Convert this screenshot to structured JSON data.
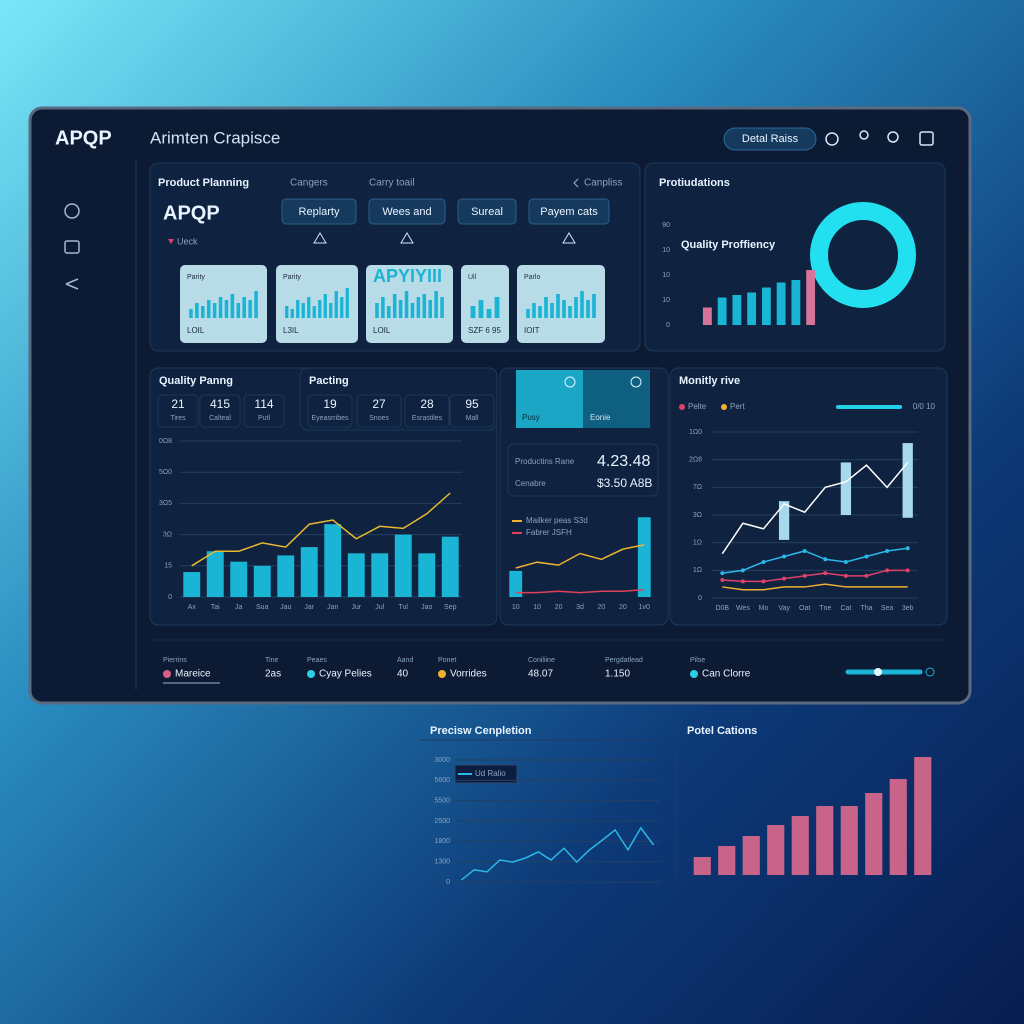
{
  "header": {
    "logo": "APQP",
    "title": "Arimten Crapisce",
    "button": "Detal Raiss"
  },
  "planning": {
    "title": "Product Planning",
    "tabs": [
      "Cangers",
      "Carry toail"
    ],
    "link": "Canpliss",
    "logo": "APQP",
    "note": "Ueck",
    "buttons": [
      "Replarty",
      "Wees and",
      "Sureal",
      "Payem cats"
    ],
    "cards": [
      {
        "label": "Parity",
        "footer": "LOIL",
        "values": [
          3,
          5,
          4,
          6,
          5,
          7,
          6,
          8,
          5,
          7,
          6,
          9
        ]
      },
      {
        "label": "Parity",
        "footer": "L3IL",
        "values": [
          4,
          3,
          6,
          5,
          7,
          4,
          6,
          8,
          5,
          9,
          7,
          10
        ]
      },
      {
        "label": "APYIYIII",
        "footer": "LOIL",
        "values": [
          5,
          7,
          4,
          8,
          6,
          9,
          5,
          7,
          8,
          6,
          9,
          7
        ]
      },
      {
        "label": "Uil",
        "footer": "SZF 6 95",
        "values": [
          4,
          6,
          3,
          7
        ]
      },
      {
        "label": "Parlo",
        "footer": "IOIT",
        "values": [
          3,
          5,
          4,
          7,
          5,
          8,
          6,
          4,
          7,
          9,
          6,
          8
        ]
      }
    ],
    "ylim": [
      0,
      10
    ],
    "bar_color": "#1ab4d4"
  },
  "stats": {
    "quality": {
      "title": "Quality Panng",
      "items": [
        {
          "value": 21,
          "label": "Tires"
        },
        {
          "value": 415,
          "label": "Calteal"
        },
        {
          "value": 114,
          "label": "Putl"
        }
      ]
    },
    "pacting": {
      "title": "Pacting",
      "items": [
        {
          "value": 19,
          "label": "Eyeasrribes"
        },
        {
          "value": 27,
          "label": "Snoes"
        },
        {
          "value": 28,
          "label": "Esrastiles"
        },
        {
          "value": 95,
          "label": "Mall"
        }
      ]
    }
  },
  "production": {
    "card": [
      "Pusy",
      "Eonie"
    ],
    "rate_label": "Productins Rane",
    "rate": "4.23.48",
    "cost_label": "Cenabre",
    "cost": "$3.50 A8B"
  },
  "footer": [
    {
      "label": "Pierrins",
      "value": "Mareice",
      "color": "#d6608a"
    },
    {
      "label": "Tine",
      "value": "2as"
    },
    {
      "label": "Peaes",
      "value": "Cyay Pelies",
      "color": "#2ad0e8"
    },
    {
      "label": "Aand",
      "value": "40"
    },
    {
      "label": "Ponet",
      "value": "Vorrides",
      "color": "#f0b030"
    },
    {
      "label": "Coniliine",
      "value": "48.07"
    },
    {
      "label": "Pergdatlead",
      "value": "1.150"
    },
    {
      "label": "Pilse",
      "value": "Can Clorre",
      "color": "#2ad0e8"
    }
  ],
  "chart_data": [
    {
      "type": "bar",
      "title": "Protiudations",
      "subtitle": "Quality Proffiency",
      "values": [
        7,
        11,
        12,
        13,
        15,
        17,
        18,
        22
      ],
      "colors": [
        "#d6749a",
        "#1ab4d4",
        "#1ab4d4",
        "#1ab4d4",
        "#1ab4d4",
        "#1ab4d4",
        "#1ab4d4",
        "#d6749a"
      ],
      "ylim": [
        0,
        40
      ],
      "yticks": [
        0,
        10,
        {
          "value": 20,
          "label": "10"
        },
        {
          "value": 30,
          "label": "10"
        },
        {
          "value": 40,
          "label": "90"
        }
      ],
      "grid": false
    },
    {
      "type": "combo",
      "categories": [
        "Ax",
        "Tai",
        "Ja",
        "Sua",
        "Jau",
        "Jar",
        "Jan",
        "Jur",
        "Jul",
        "Tul",
        "Jao",
        "Sep"
      ],
      "series": [
        {
          "type": "bar",
          "color": "#1ab4d4",
          "values": [
            12,
            22,
            17,
            15,
            20,
            24,
            35,
            21,
            21,
            30,
            21,
            29
          ]
        },
        {
          "type": "line",
          "color": "#e8b830",
          "values": [
            15,
            22,
            22,
            26,
            24,
            35,
            37,
            28,
            34,
            33,
            40,
            50
          ]
        }
      ],
      "ylim": [
        0,
        75
      ],
      "yticks": [
        0,
        15,
        {
          "value": 30,
          "label": "3Ω"
        },
        {
          "value": 45,
          "label": "3Ω5"
        },
        {
          "value": 60,
          "label": "5Ω0"
        },
        {
          "value": 75,
          "label": "0Ω8"
        }
      ],
      "grid": true
    },
    {
      "type": "combo",
      "categories": [
        "10",
        "10",
        "20",
        "3d",
        "20",
        "20",
        "1v0"
      ],
      "series": [
        {
          "type": "bar",
          "color": "#1ab4d4",
          "values": [
            18,
            null,
            null,
            null,
            null,
            null,
            55
          ]
        },
        {
          "type": "line",
          "name": "Mailker peas S3d",
          "color": "#f0b030",
          "values": [
            20,
            24,
            22,
            30,
            26,
            33,
            36
          ]
        },
        {
          "type": "line",
          "name": "Fabrer JSFH",
          "color": "#e0405a",
          "values": [
            3,
            3,
            4,
            3,
            4,
            4,
            5
          ]
        }
      ],
      "ylim": [
        0,
        60
      ],
      "grid": false
    },
    {
      "type": "combo",
      "title": "Monitly rive",
      "annotation": "0/0 10",
      "categories": [
        "D0B",
        "Wes",
        "Mo",
        "Vay",
        "Oat",
        "Tne",
        "Cat",
        "Tha",
        "Sea",
        "3eb"
      ],
      "ranges": {
        "color": "#a8d8ec",
        "low": [
          null,
          null,
          null,
          21,
          null,
          null,
          30,
          null,
          null,
          29
        ],
        "high": [
          null,
          null,
          null,
          35,
          null,
          null,
          49,
          null,
          null,
          56
        ]
      },
      "series": [
        {
          "type": "line",
          "color": "#ffffff",
          "values": [
            16,
            27,
            25,
            34,
            31,
            40,
            42,
            48,
            40,
            49
          ]
        },
        {
          "type": "line",
          "color": "#2ab8e8",
          "markers": true,
          "values": [
            9,
            10,
            13,
            15,
            17,
            14,
            13,
            15,
            17,
            18
          ]
        },
        {
          "type": "line",
          "name": "Pelte",
          "color": "#e0406a",
          "markers": true,
          "values": [
            6.5,
            6,
            6,
            7,
            8,
            9,
            8,
            8,
            10,
            10
          ]
        },
        {
          "type": "line",
          "name": "Pert",
          "color": "#f0b030",
          "values": [
            4,
            3,
            3,
            4,
            4,
            5,
            4,
            4,
            4,
            4
          ]
        }
      ],
      "ylim": [
        0,
        60
      ],
      "yticks": [
        0,
        {
          "value": 10,
          "label": "1Ω"
        },
        {
          "value": 20,
          "label": "1Ω"
        },
        {
          "value": 30,
          "label": "3Ω"
        },
        {
          "value": 40,
          "label": "7Ω"
        },
        {
          "value": 50,
          "label": "2Ω8"
        },
        {
          "value": 60,
          "label": "1Ω0"
        }
      ],
      "grid": true
    },
    {
      "type": "line",
      "title": "Precisw Cenpletion",
      "series": [
        {
          "type": "line",
          "name": "Ud Ralio",
          "color": "#2ab8e8",
          "values": [
            50,
            300,
            250,
            540,
            490,
            590,
            740,
            540,
            830,
            490,
            790,
            1030,
            1280,
            790,
            1330,
            910
          ]
        }
      ],
      "ylim": [
        0,
        3000
      ],
      "yticks": [
        0,
        {
          "value": 500,
          "label": "1300"
        },
        {
          "value": 1000,
          "label": "1800"
        },
        {
          "value": 1500,
          "label": "2500"
        },
        {
          "value": 2000,
          "label": "5500"
        },
        {
          "value": 2500,
          "label": "5600"
        },
        3000
      ],
      "grid": true
    },
    {
      "type": "bar",
      "title": "Potel Cations",
      "values": [
        18,
        29,
        39,
        50,
        59,
        69,
        69,
        82,
        96,
        118
      ],
      "color": "#c8648a",
      "ylim": [
        0,
        120
      ],
      "grid": false
    }
  ]
}
